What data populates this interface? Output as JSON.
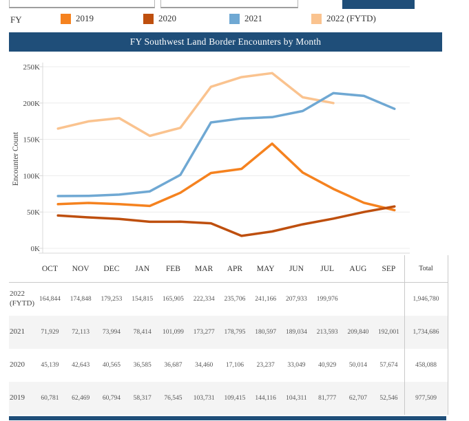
{
  "page": {
    "accent_color": "#1F4E79"
  },
  "header": {
    "title": "FY Southwest Land Border Encounters by Month"
  },
  "legend": {
    "label": "FY",
    "items": [
      {
        "label": "2019",
        "color": "#F5821F"
      },
      {
        "label": "2020",
        "color": "#BE4F0E"
      },
      {
        "label": "2021",
        "color": "#6FA8D3"
      },
      {
        "label": "2022 (FYTD)",
        "color": "#FAC38F"
      }
    ]
  },
  "chart_data": {
    "type": "line",
    "title": "FY Southwest Land Border Encounters by Month",
    "xlabel": "",
    "ylabel": "Encounter Count",
    "ylim": [
      0,
      250000
    ],
    "grid": "horizontal",
    "legend_position": "top",
    "yticks": [
      {
        "value": 0,
        "label": "0K"
      },
      {
        "value": 50000,
        "label": "50K"
      },
      {
        "value": 100000,
        "label": "100K"
      },
      {
        "value": 150000,
        "label": "150K"
      },
      {
        "value": 200000,
        "label": "200K"
      },
      {
        "value": 250000,
        "label": "250K"
      }
    ],
    "categories": [
      "OCT",
      "NOV",
      "DEC",
      "JAN",
      "FEB",
      "MAR",
      "APR",
      "MAY",
      "JUN",
      "JUL",
      "AUG",
      "SEP"
    ],
    "series": [
      {
        "name": "2019",
        "color": "#F5821F",
        "values": [
          60781,
          62469,
          60794,
          58317,
          76545,
          103731,
          109415,
          144116,
          104311,
          81777,
          62707,
          52546
        ]
      },
      {
        "name": "2020",
        "color": "#BE4F0E",
        "values": [
          45139,
          42643,
          40565,
          36585,
          36687,
          34460,
          17106,
          23237,
          33049,
          40929,
          50014,
          57674
        ]
      },
      {
        "name": "2022 (FYTD)",
        "color": "#FAC38F",
        "values": [
          164844,
          174848,
          179253,
          154815,
          165905,
          222334,
          235706,
          241166,
          207933,
          199976
        ]
      },
      {
        "name": "2021",
        "color": "#6FA8D3",
        "values": [
          71929,
          72113,
          73994,
          78414,
          101099,
          173277,
          178795,
          180597,
          189034,
          213593,
          209840,
          192001
        ]
      }
    ]
  },
  "table": {
    "columns": [
      "OCT",
      "NOV",
      "DEC",
      "JAN",
      "FEB",
      "MAR",
      "APR",
      "MAY",
      "JUN",
      "JUL",
      "AUG",
      "SEP"
    ],
    "total_label": "Total",
    "rows": [
      {
        "label": "2022 (FYTD)",
        "values": [
          "164,844",
          "174,848",
          "179,253",
          "154,815",
          "165,905",
          "222,334",
          "235,706",
          "241,166",
          "207,933",
          "199,976",
          "",
          ""
        ],
        "total": "1,946,780"
      },
      {
        "label": "2021",
        "values": [
          "71,929",
          "72,113",
          "73,994",
          "78,414",
          "101,099",
          "173,277",
          "178,795",
          "180,597",
          "189,034",
          "213,593",
          "209,840",
          "192,001"
        ],
        "total": "1,734,686"
      },
      {
        "label": "2020",
        "values": [
          "45,139",
          "42,643",
          "40,565",
          "36,585",
          "36,687",
          "34,460",
          "17,106",
          "23,237",
          "33,049",
          "40,929",
          "50,014",
          "57,674"
        ],
        "total": "458,088"
      },
      {
        "label": "2019",
        "values": [
          "60,781",
          "62,469",
          "60,794",
          "58,317",
          "76,545",
          "103,731",
          "109,415",
          "144,116",
          "104,311",
          "81,777",
          "62,707",
          "52,546"
        ],
        "total": "977,509"
      }
    ]
  }
}
